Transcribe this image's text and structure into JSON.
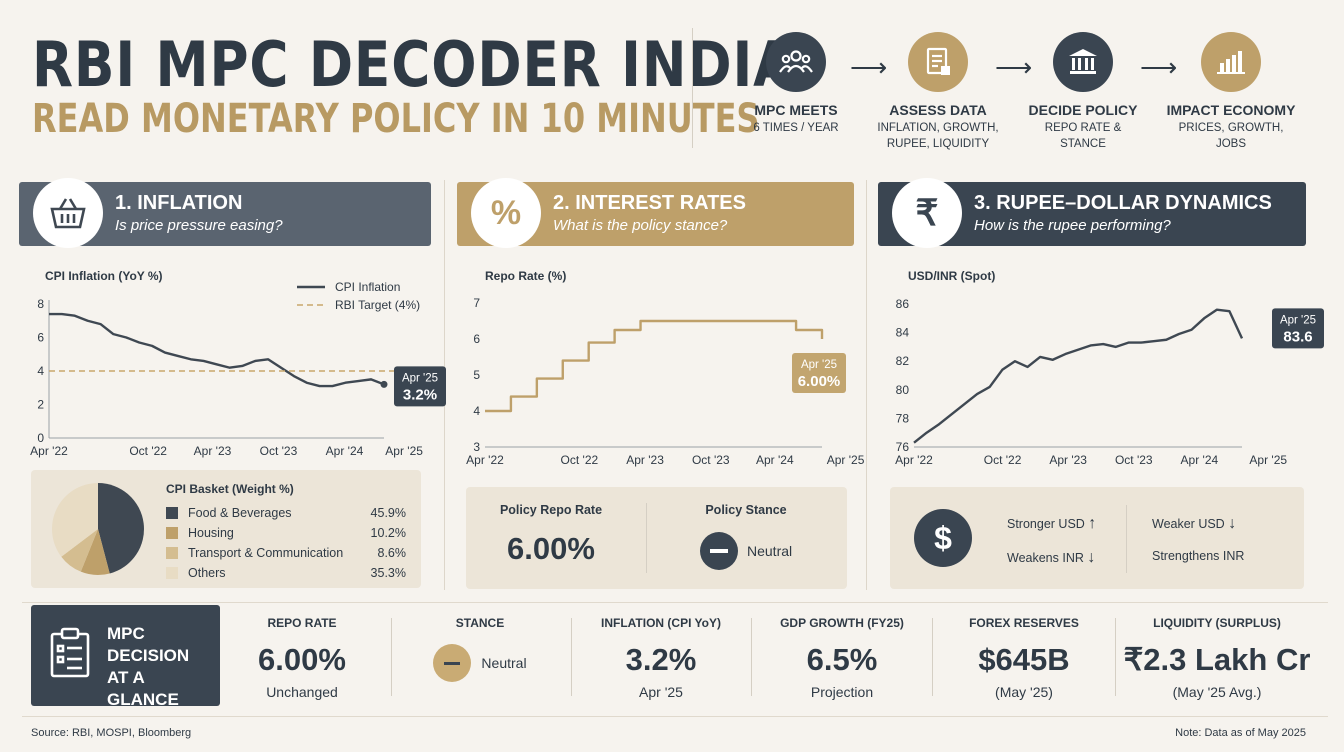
{
  "header": {
    "title": "RBI MPC DECODER INDIA",
    "subtitle": "READ MONETARY POLICY IN 10 MINUTES"
  },
  "flow": [
    {
      "icon": "people-icon",
      "label": "MPC MEETS",
      "sub": "6 TIMES / YEAR"
    },
    {
      "icon": "document-icon",
      "label": "ASSESS DATA",
      "sub": "INFLATION, GROWTH,\nRUPEE, LIQUIDITY"
    },
    {
      "icon": "bank-icon",
      "label": "DECIDE POLICY",
      "sub": "REPO RATE &\nSTANCE"
    },
    {
      "icon": "bar-chart-icon",
      "label": "IMPACT ECONOMY",
      "sub": "PRICES, GROWTH,\nJOBS"
    }
  ],
  "panels": {
    "inflation": {
      "title": "1. INFLATION",
      "question": "Is price pressure easing?",
      "icon": "basket-icon",
      "color": "#5a6470"
    },
    "rates": {
      "title": "2. INTEREST RATES",
      "question": "What is the policy stance?",
      "icon": "percent-icon",
      "color": "#bea06a"
    },
    "rupee": {
      "title": "3. RUPEE–DOLLAR DYNAMICS",
      "question": "How is the rupee performing?",
      "icon": "rupee-icon",
      "color": "#3a4551"
    }
  },
  "chart_data": [
    {
      "type": "line",
      "title": "CPI Inflation (YoY %)",
      "x_ticks": [
        "Apr '22",
        "Oct '22",
        "Apr '23",
        "Oct '23",
        "Apr '24",
        "Apr '25"
      ],
      "y_ticks": [
        0,
        2,
        4,
        6,
        8
      ],
      "ylim": [
        0,
        8
      ],
      "legend_position": "top-right",
      "series": [
        {
          "name": "CPI Inflation",
          "color": "#3f4852",
          "values": [
            7.4,
            7.4,
            7.3,
            7.0,
            6.8,
            6.2,
            6.0,
            5.7,
            5.5,
            5.1,
            4.9,
            4.7,
            4.6,
            4.4,
            4.2,
            4.3,
            4.6,
            4.7,
            4.2,
            3.7,
            3.3,
            3.1,
            3.1,
            3.3,
            3.4,
            3.5,
            3.2
          ]
        },
        {
          "name": "RBI Target (4%)",
          "color": "#c9a86c",
          "dashed": true,
          "values": [
            4,
            4
          ]
        }
      ],
      "callout": {
        "label": "Apr '25",
        "value": "3.2%"
      }
    },
    {
      "type": "line",
      "title": "Repo Rate (%)",
      "x_ticks": [
        "Apr '22",
        "Oct '22",
        "Apr '23",
        "Oct '23",
        "Apr '24",
        "Apr '25"
      ],
      "y_ticks": [
        3,
        4,
        5,
        6,
        7
      ],
      "ylim": [
        3,
        7
      ],
      "series": [
        {
          "name": "",
          "color": "#bea06a",
          "step": true,
          "values": [
            4.0,
            4.0,
            4.4,
            4.4,
            4.9,
            4.9,
            5.4,
            5.4,
            5.9,
            5.9,
            6.25,
            6.25,
            6.5,
            6.5,
            6.5,
            6.5,
            6.5,
            6.5,
            6.5,
            6.5,
            6.5,
            6.5,
            6.5,
            6.5,
            6.25,
            6.25,
            6.0
          ]
        }
      ],
      "callout": {
        "label": "Apr '25",
        "value": "6.00%"
      }
    },
    {
      "type": "line",
      "title": "USD/INR (Spot)",
      "x_ticks": [
        "Apr '22",
        "Oct '22",
        "Apr '23",
        "Oct '23",
        "Apr '24",
        "Apr '25"
      ],
      "y_ticks": [
        76,
        78,
        80,
        82,
        84,
        86
      ],
      "ylim": [
        76,
        86
      ],
      "series": [
        {
          "name": "",
          "color": "#3f4852",
          "values": [
            76.3,
            77.0,
            77.6,
            78.3,
            79.0,
            79.7,
            80.2,
            81.4,
            82.0,
            81.6,
            82.3,
            82.1,
            82.5,
            82.8,
            83.1,
            83.2,
            83.0,
            83.3,
            83.3,
            83.4,
            83.5,
            83.9,
            84.2,
            85.0,
            85.6,
            85.5,
            83.6
          ]
        }
      ],
      "callout": {
        "label": "Apr '25",
        "value": "83.6"
      }
    },
    {
      "type": "pie",
      "title": "CPI Basket (Weight %)",
      "categories": [
        "Food & Beverages",
        "Housing",
        "Transport & Communication",
        "Others"
      ],
      "values": [
        45.9,
        10.2,
        8.6,
        35.3
      ],
      "labels": [
        "45.9%",
        "10.2%",
        "8.6%",
        "35.3%"
      ],
      "colors": [
        "#3f4852",
        "#bea06a",
        "#d4bd90",
        "#e8dcc4"
      ]
    }
  ],
  "rates_box": {
    "repo_label": "Policy Repo Rate",
    "repo_value": "6.00%",
    "stance_label": "Policy Stance",
    "stance_value": "Neutral"
  },
  "rupee_box": {
    "icon": "dollar-icon",
    "stronger_usd": "Stronger USD",
    "weakens_inr": "Weakens INR",
    "weaker_usd": "Weaker USD",
    "strengthens_inr": "Strengthens INR"
  },
  "glance": {
    "icon": "clipboard-icon",
    "title_line1": "MPC",
    "title_line2": "DECISION",
    "title_line3": "AT A GLANCE",
    "kpis": [
      {
        "label": "REPO RATE",
        "value": "6.00%",
        "sub": "Unchanged"
      },
      {
        "label": "STANCE",
        "value": "",
        "sub": "Neutral"
      },
      {
        "label": "INFLATION (CPI YoY)",
        "value": "3.2%",
        "sub": "Apr '25"
      },
      {
        "label": "GDP GROWTH (FY25)",
        "value": "6.5%",
        "sub": "Projection"
      },
      {
        "label": "FOREX RESERVES",
        "value": "$645B",
        "sub": "(May '25)"
      },
      {
        "label": "LIQUIDITY (SURPLUS)",
        "value": "₹2.3 Lakh Cr",
        "sub": "(May '25 Avg.)"
      }
    ]
  },
  "footer": {
    "source": "Source: RBI, MOSPI, Bloomberg",
    "note": "Note: Data as of May 2025"
  }
}
